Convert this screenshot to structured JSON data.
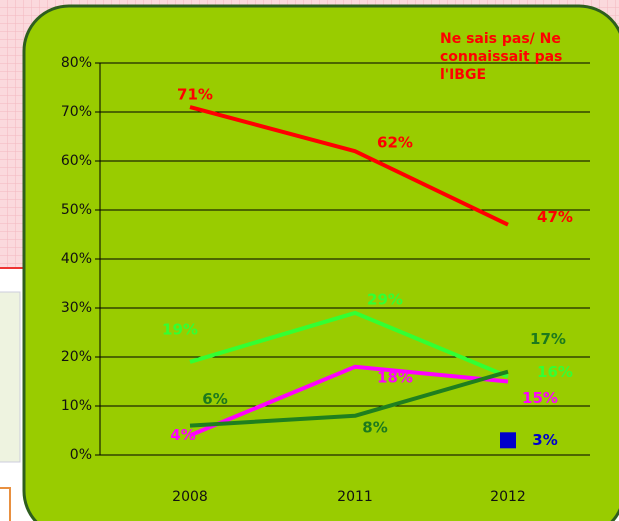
{
  "chart_data": {
    "type": "line",
    "categories": [
      "2008",
      "2011",
      "2012"
    ],
    "series": [
      {
        "name": "Ne sais pas/ Ne connaissait pas l'IBGE",
        "color": "#ff0000",
        "values": [
          71,
          62,
          47
        ],
        "value_labels": [
          "71%",
          "62%",
          "47%"
        ]
      },
      {
        "color": "#33ff33",
        "values": [
          19,
          29,
          16
        ],
        "value_labels": [
          "19%",
          "29%",
          "16%"
        ]
      },
      {
        "color": "#ff00ff",
        "values": [
          4,
          18,
          15
        ],
        "value_labels": [
          "4%",
          "18%",
          "15%"
        ]
      },
      {
        "color": "#1f7f1f",
        "values": [
          6,
          8,
          17
        ],
        "value_labels": [
          "6%",
          "8%",
          "17%"
        ]
      },
      {
        "color": "#0000cc",
        "marker": "square",
        "values": [
          null,
          null,
          3
        ],
        "value_labels": [
          null,
          null,
          "3%"
        ]
      }
    ],
    "ylim": [
      0,
      80
    ],
    "yticks": [
      {
        "value": 0,
        "label": "0%"
      },
      {
        "value": 10,
        "label": "10%"
      },
      {
        "value": 20,
        "label": "20%"
      },
      {
        "value": 30,
        "label": "30%"
      },
      {
        "value": 40,
        "label": "40%"
      },
      {
        "value": 50,
        "label": "50%"
      },
      {
        "value": 60,
        "label": "60%"
      },
      {
        "value": 70,
        "label": "70%"
      },
      {
        "value": 80,
        "label": "80%"
      }
    ],
    "grid": true
  }
}
